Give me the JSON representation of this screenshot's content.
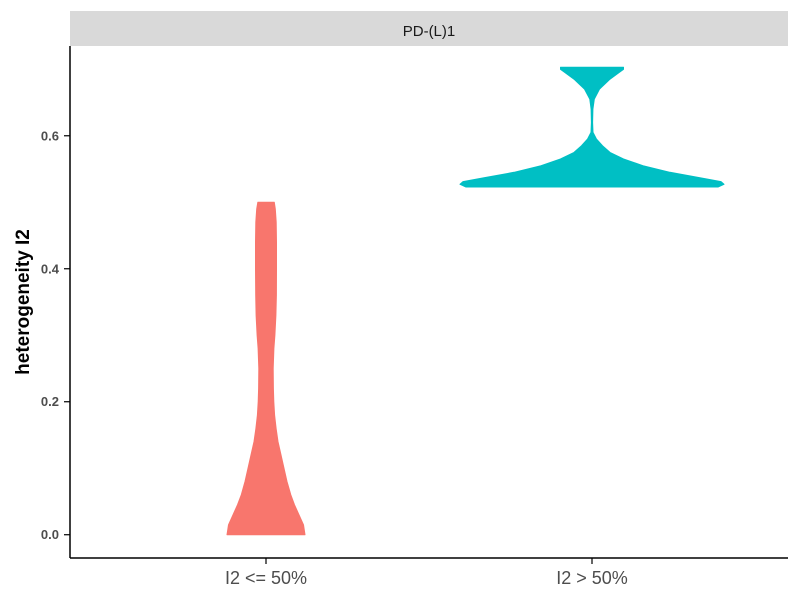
{
  "chart_data": {
    "type": "violin",
    "facet_label": "PD-(L)1",
    "ylabel": "heterogeneity I2",
    "xlabel": "",
    "ylim": [
      -0.035,
      0.735
    ],
    "yticks": [
      0.0,
      0.2,
      0.4,
      0.6
    ],
    "ytick_labels": [
      "0.0",
      "0.2",
      "0.4",
      "0.6"
    ],
    "categories": [
      "I2 <= 50%",
      "I2 > 50%"
    ],
    "colors": [
      "#F8766D",
      "#00BFC4"
    ],
    "grid": false,
    "legend": "none",
    "series": [
      {
        "category": "I2 <= 50%",
        "min": 0.0,
        "max": 0.5,
        "density": [
          [
            0.0,
            0.26
          ],
          [
            0.015,
            0.25
          ],
          [
            0.03,
            0.22
          ],
          [
            0.045,
            0.19
          ],
          [
            0.06,
            0.165
          ],
          [
            0.08,
            0.14
          ],
          [
            0.1,
            0.12
          ],
          [
            0.12,
            0.1
          ],
          [
            0.14,
            0.08
          ],
          [
            0.16,
            0.067
          ],
          [
            0.18,
            0.057
          ],
          [
            0.2,
            0.052
          ],
          [
            0.22,
            0.049
          ],
          [
            0.25,
            0.048
          ],
          [
            0.28,
            0.053
          ],
          [
            0.3,
            0.059
          ],
          [
            0.33,
            0.066
          ],
          [
            0.36,
            0.069
          ],
          [
            0.4,
            0.07
          ],
          [
            0.44,
            0.07
          ],
          [
            0.47,
            0.068
          ],
          [
            0.49,
            0.062
          ],
          [
            0.5,
            0.055
          ]
        ]
      },
      {
        "category": "I2 > 50%",
        "min": 0.523,
        "max": 0.703,
        "density": [
          [
            0.523,
            0.84
          ],
          [
            0.527,
            0.88
          ],
          [
            0.531,
            0.86
          ],
          [
            0.537,
            0.72
          ],
          [
            0.545,
            0.52
          ],
          [
            0.555,
            0.34
          ],
          [
            0.565,
            0.21
          ],
          [
            0.575,
            0.12
          ],
          [
            0.585,
            0.07
          ],
          [
            0.595,
            0.03
          ],
          [
            0.605,
            0.007
          ],
          [
            0.62,
            0.004
          ],
          [
            0.64,
            0.006
          ],
          [
            0.655,
            0.015
          ],
          [
            0.67,
            0.05
          ],
          [
            0.685,
            0.12
          ],
          [
            0.695,
            0.18
          ],
          [
            0.7,
            0.21
          ],
          [
            0.703,
            0.21
          ]
        ]
      }
    ]
  }
}
